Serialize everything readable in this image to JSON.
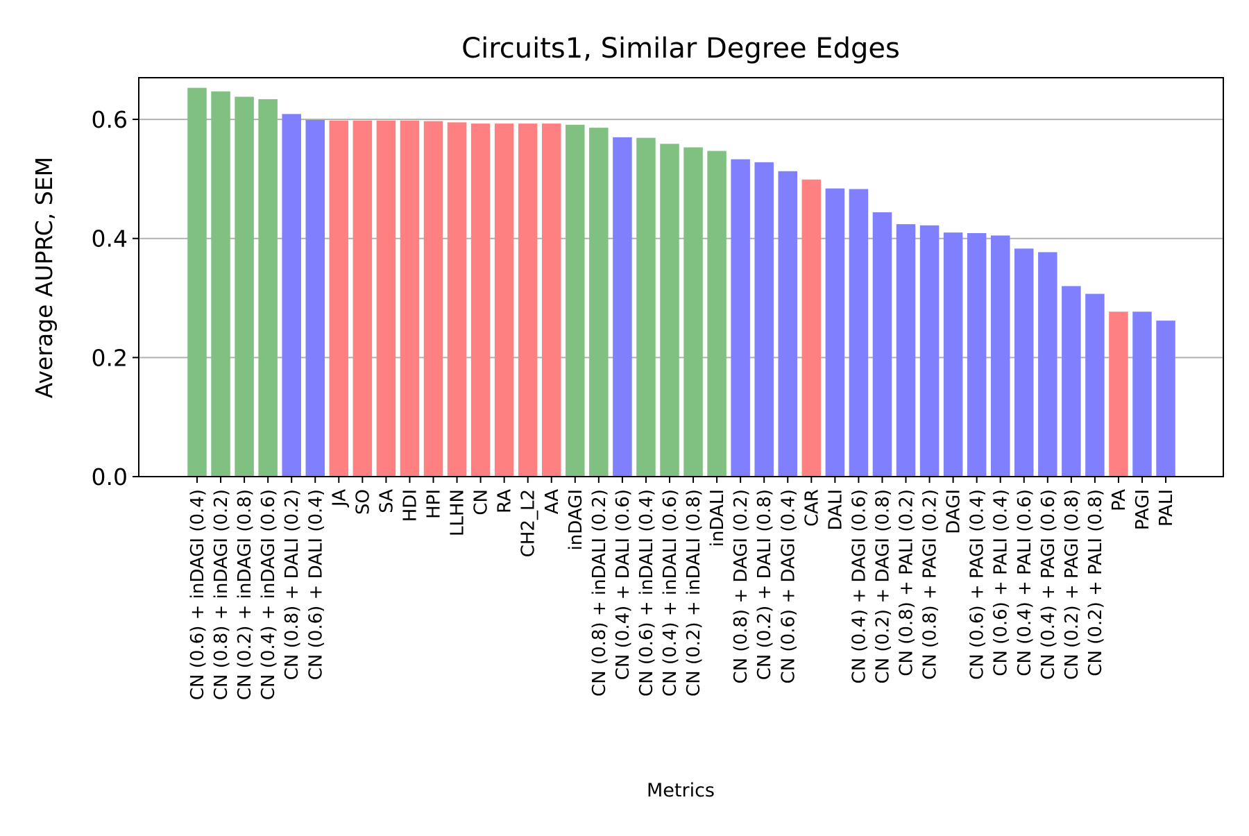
{
  "chart_data": {
    "type": "bar",
    "title": "Circuits1, Similar Degree Edges",
    "xlabel": "Metrics",
    "ylabel": "Average AUPRC, SEM",
    "ylim": [
      0,
      0.67
    ],
    "yticks": [
      0.0,
      0.2,
      0.4,
      0.6
    ],
    "ytick_labels": [
      "0.0",
      "0.2",
      "0.4",
      "0.6"
    ],
    "grid": "horizontal",
    "colors": {
      "green": "#80c080",
      "blue": "#8080ff",
      "red": "#ff8080",
      "grid": "#b0b0b0"
    },
    "categories": [
      "CN (0.6) + inDAGI (0.4)",
      "CN (0.8) + inDAGI (0.2)",
      "CN (0.2) + inDAGI (0.8)",
      "CN (0.4) + inDAGI (0.6)",
      "CN (0.8) + DALI (0.2)",
      "CN (0.6) + DALI (0.4)",
      "JA",
      "SO",
      "SA",
      "HDI",
      "HPI",
      "LLHN",
      "CN",
      "RA",
      "CH2_L2",
      "AA",
      "inDAGI",
      "CN (0.8) + inDALI (0.2)",
      "CN (0.4) + DALI (0.6)",
      "CN (0.6) + inDALI (0.4)",
      "CN (0.4) + inDALI (0.6)",
      "CN (0.2) + inDALI (0.8)",
      "inDALI",
      "CN (0.8) + DAGI (0.2)",
      "CN (0.2) + DALI (0.8)",
      "CN (0.6) + DAGI (0.4)",
      "CAR",
      "DALI",
      "CN (0.4) + DAGI (0.6)",
      "CN (0.2) + DAGI (0.8)",
      "CN (0.8) + PALI (0.2)",
      "CN (0.8) + PAGI (0.2)",
      "DAGI",
      "CN (0.6) + PAGI (0.4)",
      "CN (0.6) + PALI (0.4)",
      "CN (0.4) + PALI (0.6)",
      "CN (0.4) + PAGI (0.6)",
      "CN (0.2) + PAGI (0.8)",
      "CN (0.2) + PALI (0.8)",
      "PA",
      "PAGI",
      "PALI"
    ],
    "values": [
      0.653,
      0.647,
      0.638,
      0.634,
      0.609,
      0.599,
      0.598,
      0.598,
      0.598,
      0.598,
      0.597,
      0.595,
      0.593,
      0.593,
      0.593,
      0.593,
      0.591,
      0.586,
      0.57,
      0.569,
      0.559,
      0.553,
      0.547,
      0.533,
      0.528,
      0.513,
      0.499,
      0.484,
      0.483,
      0.444,
      0.424,
      0.422,
      0.41,
      0.409,
      0.405,
      0.383,
      0.377,
      0.32,
      0.307,
      0.277,
      0.277,
      0.262
    ],
    "bar_colors": [
      "green",
      "green",
      "green",
      "green",
      "blue",
      "blue",
      "red",
      "red",
      "red",
      "red",
      "red",
      "red",
      "red",
      "red",
      "red",
      "red",
      "green",
      "green",
      "blue",
      "green",
      "green",
      "green",
      "green",
      "blue",
      "blue",
      "blue",
      "red",
      "blue",
      "blue",
      "blue",
      "blue",
      "blue",
      "blue",
      "blue",
      "blue",
      "blue",
      "blue",
      "blue",
      "blue",
      "red",
      "blue",
      "blue"
    ]
  }
}
